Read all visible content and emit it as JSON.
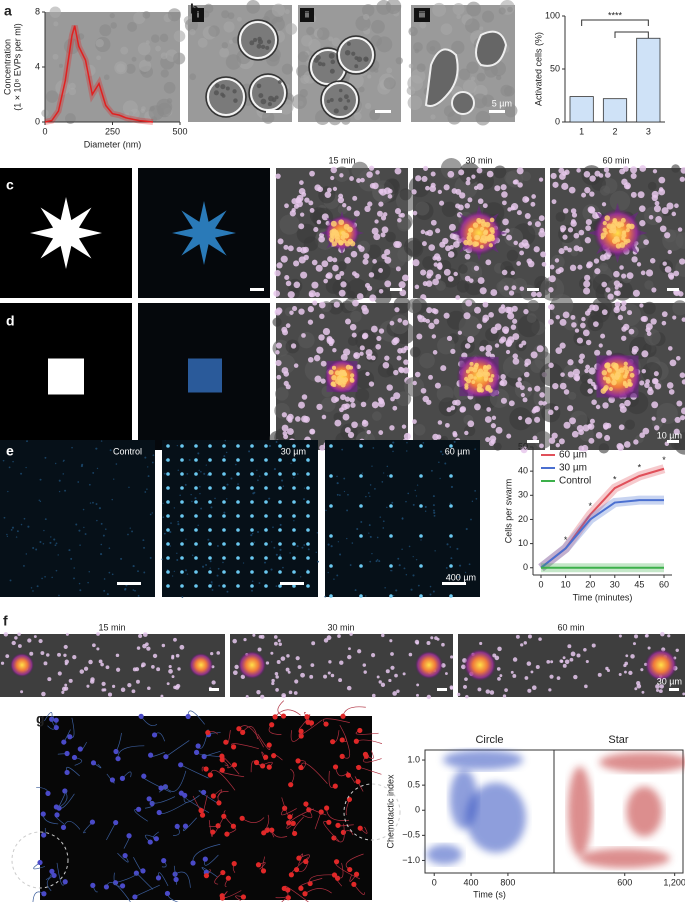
{
  "panel_labels": [
    "a",
    "b",
    "c",
    "d",
    "e",
    "f",
    "g"
  ],
  "panel_b_images": [
    "i",
    "ii",
    "iii"
  ],
  "scale_bars": {
    "b": "5 µm",
    "d": "10 µm",
    "e": "400 µm",
    "f": "30 µm"
  },
  "time_labels_cd": [
    "15 min",
    "30 min",
    "60 min"
  ],
  "panel_e_images": [
    "Control",
    "30 µm",
    "60 µm"
  ],
  "time_labels_f": [
    "15 min",
    "30 min",
    "60 min"
  ],
  "chart_data": [
    {
      "type": "line",
      "xlabel": "Diameter (nm)",
      "ylabel": [
        "Concentration",
        "(1 × 10⁸ EVPs per ml)"
      ],
      "x": [
        0,
        25,
        50,
        75,
        100,
        110,
        125,
        150,
        175,
        200,
        225,
        250,
        275,
        300,
        350,
        400
      ],
      "series": [
        {
          "color": "#e02020",
          "values": [
            0,
            0.1,
            0.8,
            3,
            6.3,
            7,
            5.5,
            4.5,
            2,
            2.8,
            1.2,
            0.6,
            0.5,
            0.3,
            0.1,
            0
          ]
        }
      ],
      "xlim": [
        0,
        500
      ],
      "xticks": [
        0,
        250,
        500
      ],
      "ylim": [
        0,
        8
      ],
      "yticks": [
        0,
        4,
        8
      ]
    },
    {
      "type": "bar",
      "ylabel": "Activated cells (%)",
      "categories": [
        "1",
        "2",
        "3"
      ],
      "values": [
        24,
        22,
        79
      ],
      "color": "#cfe2f7",
      "ylim": [
        0,
        100
      ],
      "yticks": [
        0,
        50,
        100
      ],
      "annotation": "****"
    },
    {
      "type": "line",
      "xlabel": "Time (minutes)",
      "ylabel": "Cells per swarm",
      "categories": [
        "0",
        "10",
        "20",
        "30",
        "45",
        "60"
      ],
      "series": [
        {
          "name": "60 µm",
          "color": "#e0505a",
          "values": [
            0,
            8,
            22,
            33,
            38,
            41
          ]
        },
        {
          "name": "30 µm",
          "color": "#4a6fd0",
          "values": [
            0,
            8,
            20,
            27,
            28,
            28
          ]
        },
        {
          "name": "Control",
          "color": "#3cb04a",
          "values": [
            0,
            0,
            0,
            0,
            0,
            0
          ]
        }
      ],
      "ylim": [
        -3,
        50
      ],
      "yticks": [
        0,
        10,
        20,
        30,
        40,
        50
      ],
      "legend": "upper left",
      "annotations": [
        "*",
        "*",
        "*",
        "*",
        "*"
      ]
    },
    {
      "type": "density",
      "ylabel": "Chemotactic index",
      "xlabel": "Time (s)",
      "ylim": [
        -1.25,
        1.2
      ],
      "yticks": [
        {
          "value": 1,
          "label": "1.0"
        },
        {
          "value": 0.5,
          "label": "0.5"
        },
        0,
        {
          "value": -0.5,
          "label": "−0.5"
        },
        {
          "value": -1,
          "label": "−1.0"
        }
      ],
      "panels": [
        {
          "title": "Circle",
          "color": "#3050c0",
          "xlim": [
            -100,
            1300
          ],
          "xticks": [
            0,
            400,
            800
          ]
        },
        {
          "title": "Star",
          "color": "#c03030",
          "xlim": [
            -250,
            1300
          ],
          "xticks": [
            600,
            {
              "value": 1200,
              "label": "1,200"
            }
          ]
        }
      ]
    }
  ]
}
